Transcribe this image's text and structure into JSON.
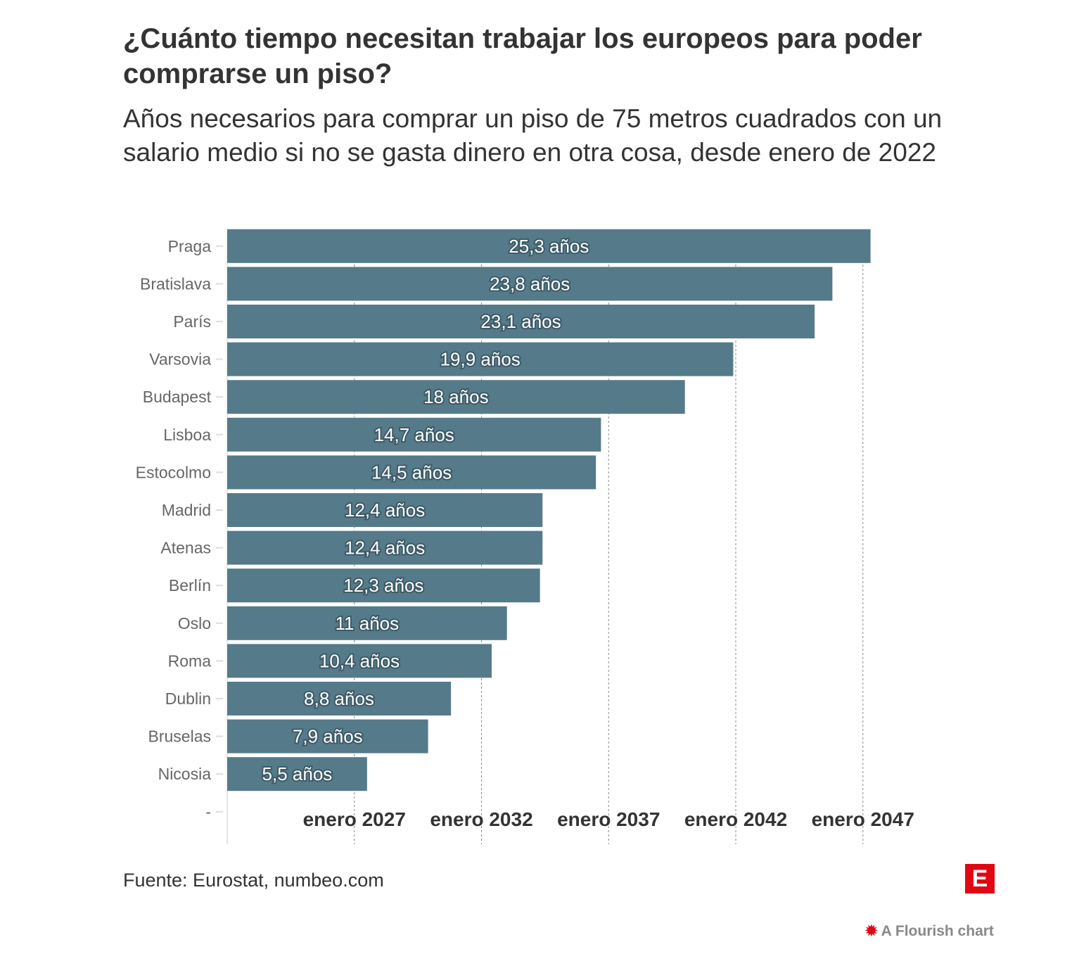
{
  "title": "¿Cuánto tiempo necesitan trabajar los europeos para poder comprarse un piso?",
  "subtitle": "Años necesarios para comprar un piso de 75 metros cuadrados con un salario medio si no se gasta dinero en otra cosa, desde enero de 2022",
  "source": "Fuente: Eurostat, numbeo.com",
  "logo_letter": "E",
  "flourish_credit": "A Flourish chart",
  "chart_data": {
    "type": "bar",
    "orientation": "horizontal",
    "categories": [
      "Praga",
      "Bratislava",
      "París",
      "Varsovia",
      "Budapest",
      "Lisboa",
      "Estocolmo",
      "Madrid",
      "Atenas",
      "Berlín",
      "Oslo",
      "Roma",
      "Dublin",
      "Bruselas",
      "Nicosia",
      "-"
    ],
    "values": [
      25.3,
      23.8,
      23.1,
      19.9,
      18,
      14.7,
      14.5,
      12.4,
      12.4,
      12.3,
      11,
      10.4,
      8.8,
      7.9,
      5.5,
      null
    ],
    "data_labels": [
      "25,3 años",
      "23,8 años",
      "23,1 años",
      "19,9 años",
      "18 años",
      "14,7 años",
      "14,5 años",
      "12,4 años",
      "12,4 años",
      "12,3 años",
      "11 años",
      "10,4 años",
      "8,8 años",
      "7,9 años",
      "5,5 años",
      ""
    ],
    "x_ticks": [
      5,
      10,
      15,
      20,
      25
    ],
    "x_tick_labels": [
      "enero 2027",
      "enero 2032",
      "enero 2037",
      "enero 2042",
      "enero 2047"
    ],
    "xlim": [
      0,
      26.5
    ],
    "grid": "vertical dashed",
    "bar_color": "#557a8a"
  }
}
